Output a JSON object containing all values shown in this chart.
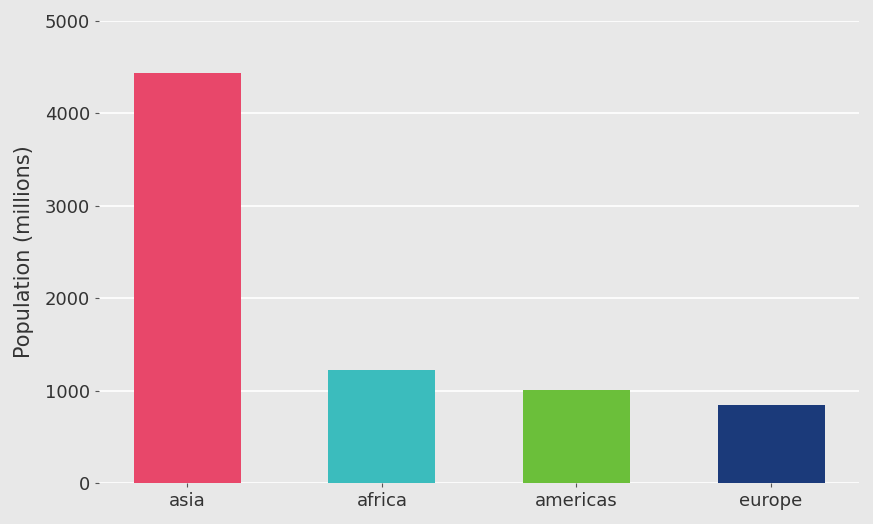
{
  "categories": [
    "asia",
    "africa",
    "americas",
    "europe"
  ],
  "values": [
    4436,
    1227,
    1003,
    849
  ],
  "bar_colors": [
    "#E8476A",
    "#3BBCBD",
    "#6BBF3A",
    "#1B3A7A"
  ],
  "ylabel": "Population (millions)",
  "ylim": [
    0,
    5000
  ],
  "yticks": [
    0,
    1000,
    2000,
    3000,
    4000,
    5000
  ],
  "background_color": "#E8E8E8",
  "panel_color": "#E8E8E8",
  "grid_color": "#FFFFFF",
  "tick_label_fontsize": 13,
  "axis_label_fontsize": 15,
  "bar_width": 0.55
}
